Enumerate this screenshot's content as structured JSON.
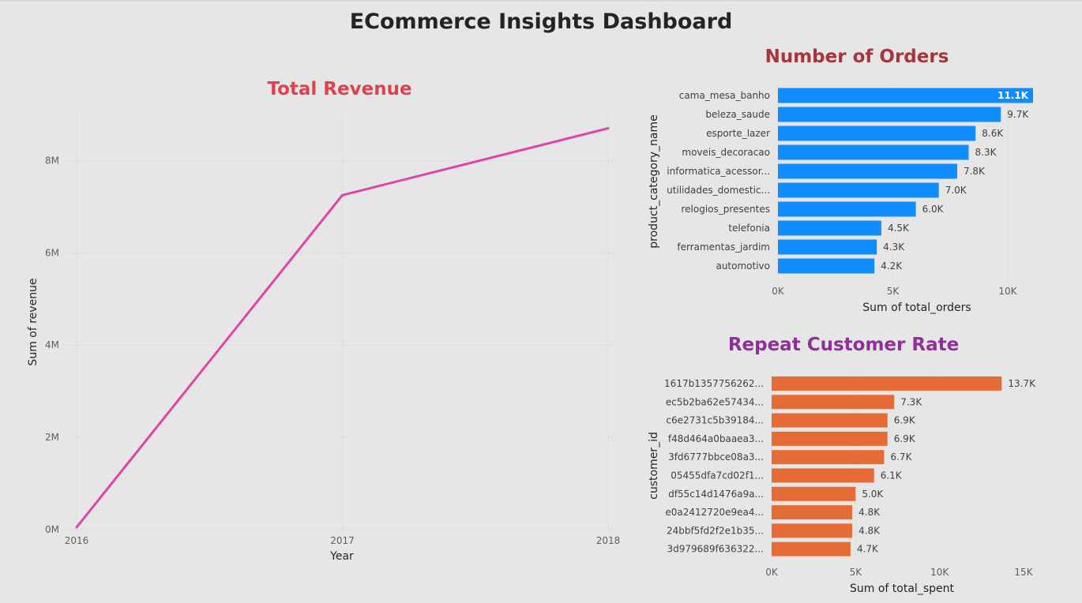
{
  "dashboard": {
    "title": "ECommerce Insights Dashboard"
  },
  "chart_data": [
    {
      "type": "line",
      "title": "Total Revenue",
      "xlabel": "Year",
      "ylabel": "Sum of revenue",
      "x": [
        "2016",
        "2017",
        "2018"
      ],
      "series": [
        {
          "values": [
            50000,
            7250000,
            8700000
          ]
        }
      ],
      "ylim": [
        0,
        9000000
      ],
      "yticks": [
        0,
        2000000,
        4000000,
        6000000,
        8000000
      ],
      "ytick_labels": [
        "0M",
        "2M",
        "4M",
        "6M",
        "8M"
      ],
      "grid": true,
      "color": "#e044a7"
    },
    {
      "type": "bar",
      "orientation": "horizontal",
      "title": "Number of Orders",
      "xlabel": "Sum of total_orders",
      "ylabel": "product_category_name",
      "categories": [
        "cama_mesa_banho",
        "beleza_saude",
        "esporte_lazer",
        "moveis_decoracao",
        "informatica_acessor...",
        "utilidades_domestic...",
        "relogios_presentes",
        "telefonia",
        "ferramentas_jardim",
        "automotivo"
      ],
      "values": [
        11100,
        9700,
        8600,
        8300,
        7800,
        7000,
        6000,
        4500,
        4300,
        4200
      ],
      "value_labels": [
        "11.1K",
        "9.7K",
        "8.6K",
        "8.3K",
        "7.8K",
        "7.0K",
        "6.0K",
        "4.5K",
        "4.3K",
        "4.2K"
      ],
      "xlim": [
        0,
        11100
      ],
      "xticks": [
        0,
        5000,
        10000
      ],
      "xtick_labels": [
        "0K",
        "5K",
        "10K"
      ],
      "grid": true,
      "color": "#118dff"
    },
    {
      "type": "bar",
      "orientation": "horizontal",
      "title": "Repeat Customer Rate",
      "xlabel": "Sum of total_spent",
      "ylabel": "customer_id",
      "categories": [
        "1617b1357756262...",
        "ec5b2ba62e57434...",
        "c6e2731c5b39184...",
        "f48d464a0baaea3...",
        "3fd6777bbce08a3...",
        "05455dfa7cd02f1...",
        "df55c14d1476a9a...",
        "e0a2412720e9ea4...",
        "24bbf5fd2f2e1b35...",
        "3d979689f636322..."
      ],
      "values": [
        13700,
        7300,
        6900,
        6900,
        6700,
        6100,
        5000,
        4800,
        4800,
        4700
      ],
      "value_labels": [
        "13.7K",
        "7.3K",
        "6.9K",
        "6.9K",
        "6.7K",
        "6.1K",
        "5.0K",
        "4.8K",
        "4.8K",
        "4.7K"
      ],
      "xlim": [
        0,
        15000
      ],
      "xticks": [
        0,
        5000,
        10000,
        15000
      ],
      "xtick_labels": [
        "0K",
        "5K",
        "10K",
        "15K"
      ],
      "grid": true,
      "color": "#e66c37"
    }
  ]
}
